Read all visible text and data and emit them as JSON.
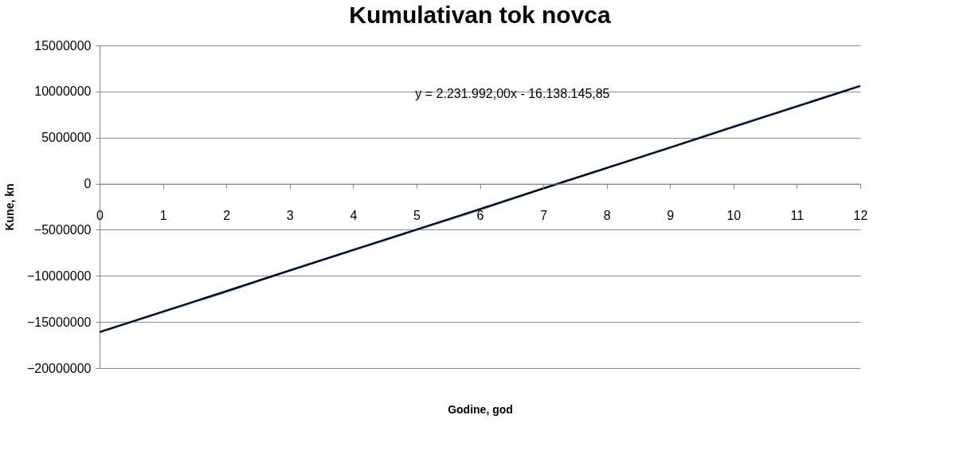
{
  "chart_data": {
    "type": "line",
    "title": "Kumulativan tok novca",
    "xlabel": "Godine, god",
    "ylabel": "Kune, kn",
    "x": [
      0,
      1,
      2,
      3,
      4,
      5,
      6,
      7,
      8,
      9,
      10,
      11,
      12
    ],
    "series": [
      {
        "color": "#4f81bd",
        "values": [
          -16100000,
          -13900000,
          -11700000,
          -9400000,
          -7200000,
          -5000000,
          -2800000,
          -500000,
          1700000,
          3900000,
          6200000,
          8400000,
          10600000
        ]
      },
      {
        "type": "line",
        "color": "#000000",
        "x": [
          0,
          12
        ],
        "values": [
          -16100000,
          10600000
        ]
      }
    ],
    "annotations": [
      "y = 2.231.992,00x - 16.138.145,85"
    ],
    "xlim": [
      0,
      12
    ],
    "xticks": [
      0,
      1,
      2,
      3,
      4,
      5,
      6,
      7,
      8,
      9,
      10,
      11,
      12
    ],
    "ylim": [
      -20000000,
      15000000
    ],
    "yticks": [
      -20000000,
      -15000000,
      -10000000,
      -5000000,
      0,
      5000000,
      10000000,
      15000000
    ],
    "grid": "y",
    "marker": "none",
    "line_style": "solid"
  }
}
